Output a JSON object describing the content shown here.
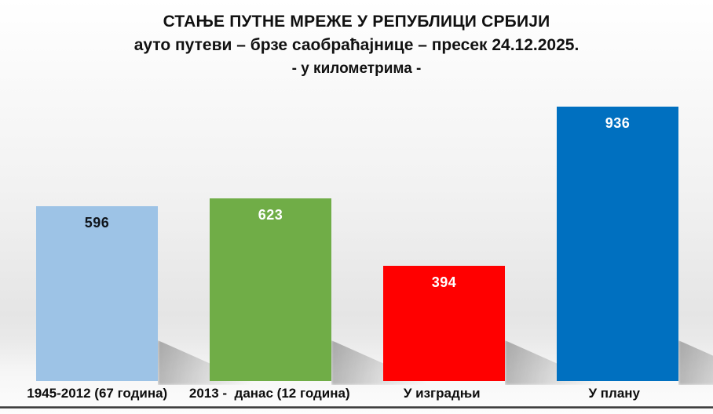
{
  "title": {
    "line1": "СТАЊЕ ПУТНЕ МРЕЖЕ У РЕПУБЛИЦИ СРБИЈИ",
    "line2": "ауто путеви – брзе саобраћајнице – пресек 24.12.2025.",
    "line3": "- у километрима -"
  },
  "chart_data": {
    "type": "bar",
    "title": "СТАЊЕ ПУТНЕ МРЕЖЕ У РЕПУБЛИЦИ СРБИЈИ",
    "subtitle": "ауто путеви – брзе саобраћајнице – пресек 24.12.2025.",
    "units_note": "- у километрима -",
    "categories": [
      "1945-2012 (67 година)",
      "2013 -  данас (12 година)",
      "У изградњи",
      "У плану"
    ],
    "values": [
      596,
      623,
      394,
      936
    ],
    "bar_colors": [
      "#9DC3E6",
      "#70AD47",
      "#FF0000",
      "#0070C0"
    ],
    "value_label_colors": [
      "#10151c",
      "#ffffff",
      "#ffffff",
      "#ffffff"
    ],
    "ylim": [
      0,
      936
    ],
    "xlabel": "",
    "ylabel": "",
    "grid": false,
    "legend": "none",
    "value_label_position": "inside-top",
    "background": "gradient-gray",
    "shadow_effect": "perspective-lower-right"
  }
}
